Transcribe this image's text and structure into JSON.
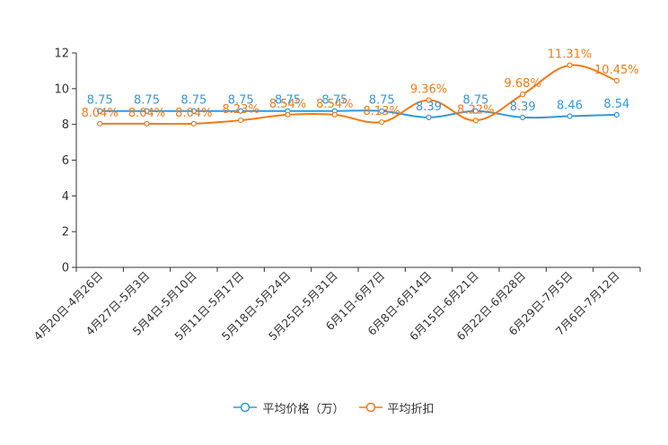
{
  "chart_data": {
    "type": "line",
    "title": "",
    "xlabel": "",
    "ylabel": "",
    "ylim": [
      0,
      12
    ],
    "yticks": [
      0,
      2,
      4,
      6,
      8,
      10,
      12
    ],
    "categories": [
      "4月20日-4月26日",
      "4月27日-5月3日",
      "5月4日-5月10日",
      "5月11日-5月17日",
      "5月18日-5月24日",
      "5月25日-5月31日",
      "6月1日-6月7日",
      "6月8日-6月14日",
      "6月15日-6月21日",
      "6月22日-6月28日",
      "6月29日-7月5日",
      "7月6日-7月12日"
    ],
    "series": [
      {
        "name": "平均价格（万）",
        "color": "#3398DB",
        "values": [
          8.75,
          8.75,
          8.75,
          8.75,
          8.75,
          8.75,
          8.75,
          8.39,
          8.75,
          8.39,
          8.46,
          8.54
        ],
        "labels": [
          "8.75",
          "8.75",
          "8.75",
          "8.75",
          "8.75",
          "8.75",
          "8.75",
          "8.39",
          "8.75",
          "8.39",
          "8.46",
          "8.54"
        ]
      },
      {
        "name": "平均折扣",
        "color": "#F47A16",
        "values": [
          8.04,
          8.04,
          8.04,
          8.23,
          8.54,
          8.54,
          8.13,
          9.36,
          8.22,
          9.68,
          11.31,
          10.45
        ],
        "labels": [
          "8.04%",
          "8.04%",
          "8.04%",
          "8.23%",
          "8.54%",
          "8.54%",
          "8.13%",
          "9.36%",
          "8.22%",
          "9.68%",
          "11.31%",
          "10.45%"
        ]
      }
    ],
    "legend_position": "bottom-center"
  }
}
